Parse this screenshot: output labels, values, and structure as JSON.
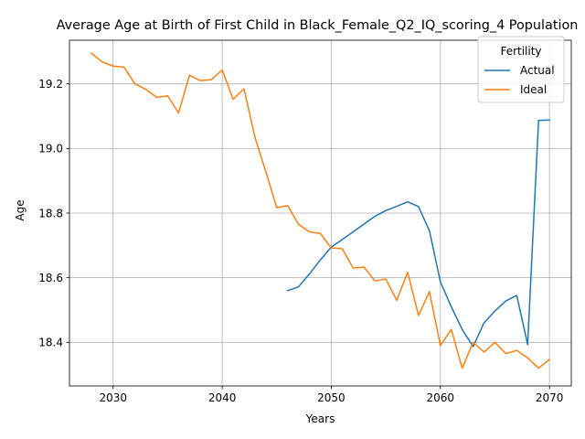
{
  "chart_data": {
    "type": "line",
    "title": "Average Age at Birth of First Child in Black_Female_Q2_IQ_scoring_4 Population",
    "xlabel": "Years",
    "ylabel": "Age",
    "xlim": [
      2026,
      2072
    ],
    "ylim": [
      18.265,
      19.335
    ],
    "xticks": [
      2030,
      2040,
      2050,
      2060,
      2070
    ],
    "yticks": [
      18.4,
      18.6,
      18.8,
      19.0,
      19.2
    ],
    "grid": true,
    "legend": {
      "title": "Fertility",
      "placement": "top-right"
    },
    "series": [
      {
        "name": "Actual",
        "color": "#1f77b4",
        "x": [
          2046,
          2047,
          2048,
          2049,
          2050,
          2051,
          2052,
          2053,
          2054,
          2055,
          2056,
          2057,
          2058,
          2059,
          2060,
          2061,
          2062,
          2063,
          2064,
          2065,
          2066,
          2067,
          2068,
          2069,
          2070
        ],
        "y": [
          18.56,
          18.572,
          18.612,
          18.655,
          18.695,
          18.718,
          18.742,
          18.766,
          18.79,
          18.808,
          18.821,
          18.835,
          18.82,
          18.745,
          18.587,
          18.51,
          18.44,
          18.387,
          18.46,
          18.497,
          18.528,
          18.545,
          18.393,
          19.087,
          19.088
        ]
      },
      {
        "name": "Ideal",
        "color": "#ff7f0e",
        "x": [
          2028,
          2029,
          2030,
          2031,
          2032,
          2033,
          2034,
          2035,
          2036,
          2037,
          2038,
          2039,
          2040,
          2041,
          2042,
          2043,
          2044,
          2045,
          2046,
          2047,
          2048,
          2049,
          2050,
          2051,
          2052,
          2053,
          2054,
          2055,
          2056,
          2057,
          2058,
          2059,
          2060,
          2061,
          2062,
          2063,
          2064,
          2065,
          2066,
          2067,
          2068,
          2069,
          2070
        ],
        "y": [
          19.295,
          19.268,
          19.255,
          19.252,
          19.2,
          19.183,
          19.158,
          19.163,
          19.11,
          19.227,
          19.21,
          19.213,
          19.243,
          19.152,
          19.185,
          19.035,
          18.928,
          18.817,
          18.823,
          18.765,
          18.742,
          18.737,
          18.692,
          18.69,
          18.63,
          18.633,
          18.59,
          18.596,
          18.53,
          18.617,
          18.483,
          18.557,
          18.39,
          18.44,
          18.32,
          18.4,
          18.37,
          18.4,
          18.365,
          18.375,
          18.352,
          18.32,
          18.347
        ]
      }
    ]
  }
}
